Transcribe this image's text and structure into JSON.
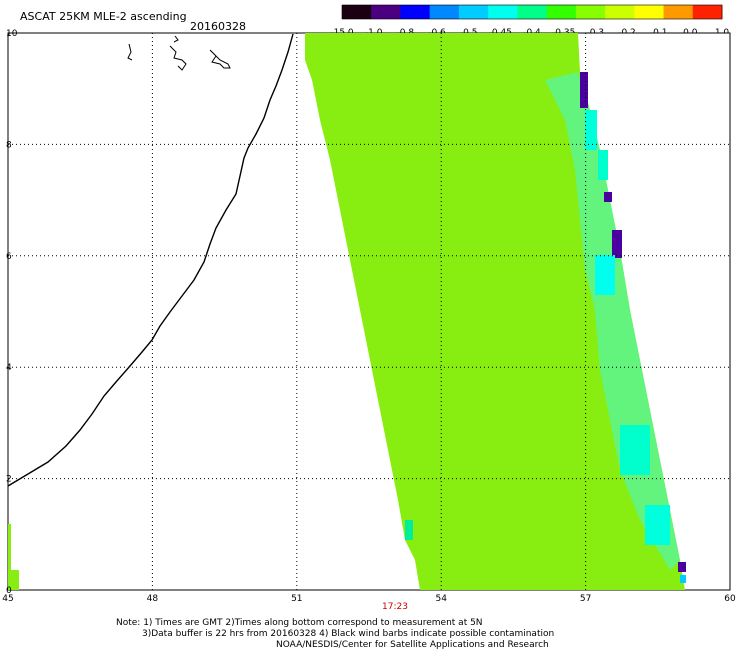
{
  "header": {
    "title": "ASCAT 25KM MLE-2 ascending",
    "date": "20160328"
  },
  "legend": {
    "ticks": [
      "-15.0",
      "-1.0",
      "-0.8",
      "-0.6",
      "-0.5",
      "-0.45",
      "-0.4",
      "-0.35",
      "-0.3",
      "-0.2",
      "-0.1",
      "0.0",
      "1.0"
    ],
    "colors": [
      "#1a0010",
      "#4b0082",
      "#0000ff",
      "#0088ff",
      "#00ccff",
      "#00ffee",
      "#00ff88",
      "#33ff00",
      "#88ff00",
      "#ccff00",
      "#ffff00",
      "#ff9900",
      "#ff2200"
    ]
  },
  "map": {
    "x_ticks": [
      "45",
      "48",
      "51",
      "54",
      "57",
      "60"
    ],
    "y_ticks": [
      "0",
      "2",
      "4",
      "6",
      "8",
      "10"
    ],
    "lon_range": [
      45,
      60
    ],
    "lat_range": [
      0,
      10
    ],
    "swath_color": "#88ee11",
    "time_label": "17:23"
  },
  "notes": {
    "line1": "Note: 1) Times are GMT 2)Times along bottom correspond to measurement at 5N",
    "line2": "3)Data buffer is 22 hrs from 20160328 4) Black wind barbs indicate possible contamination",
    "line3": "NOAA/NESDIS/Center for Satellite Applications and Research"
  }
}
